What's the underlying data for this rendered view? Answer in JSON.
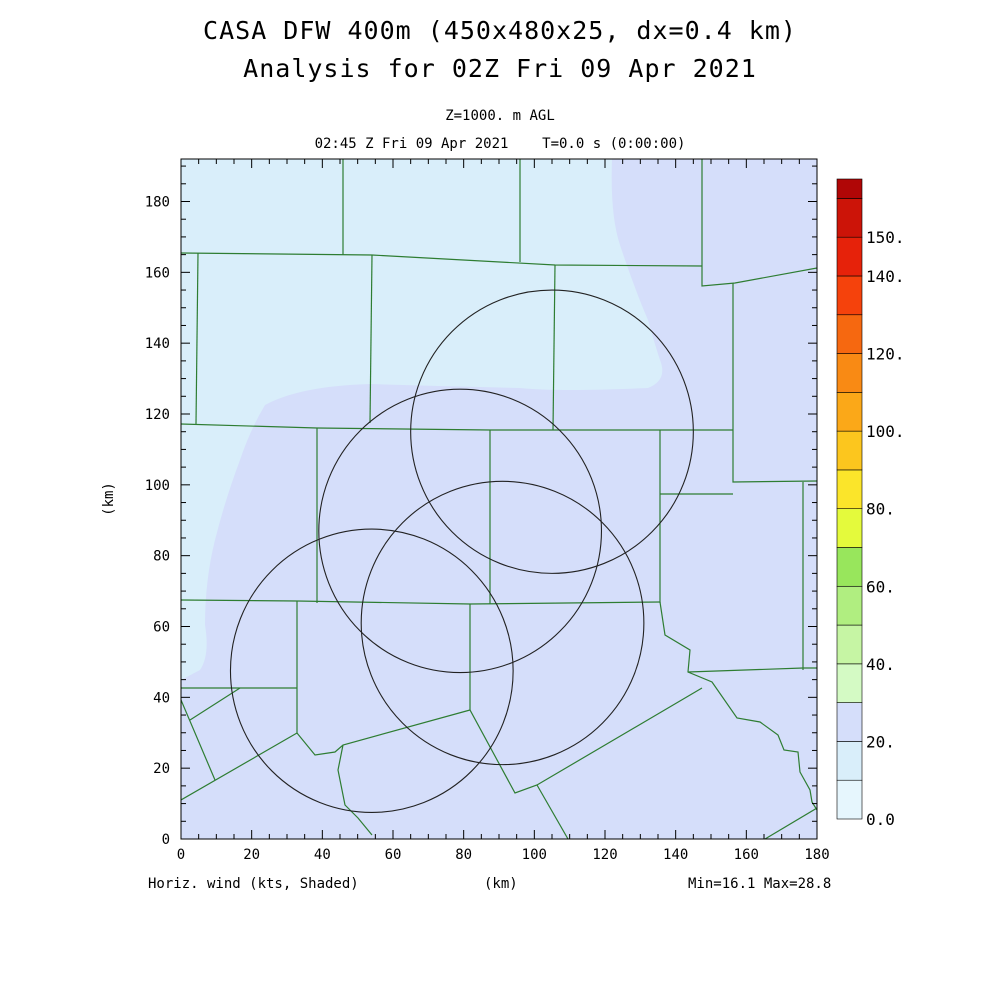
{
  "header": {
    "title_line1": "CASA DFW 400m (450x480x25, dx=0.4 km)",
    "title_line2": "Analysis for 02Z Fri 09 Apr 2021",
    "level": "Z=1000. m AGL",
    "time": "02:45 Z Fri 09 Apr 2021    T=0.0 s (0:00:00)"
  },
  "footer": {
    "variable": "Horiz. wind (kts, Shaded)",
    "x_unit": "(km)",
    "minmax": "Min=16.1 Max=28.8"
  },
  "colors": {
    "field_low": "#d9eefa",
    "field_mid": "#d5defa",
    "boundary": "#2e7d32",
    "range_ring": "#222222"
  },
  "chart_data": {
    "type": "heatmap",
    "xlabel": "(km)",
    "ylabel": "(km)",
    "xlim": [
      0,
      180
    ],
    "ylim": [
      0,
      192
    ],
    "x_ticks": [
      0,
      20,
      40,
      60,
      80,
      100,
      120,
      140,
      160,
      180
    ],
    "y_ticks": [
      0,
      20,
      40,
      60,
      80,
      100,
      120,
      140,
      160,
      180
    ],
    "field_min": 16.1,
    "field_max": 28.8,
    "grid": false,
    "range_rings": [
      {
        "center_x": 54,
        "center_y": 47.5,
        "radius_km": 40
      },
      {
        "center_x": 79,
        "center_y": 87,
        "radius_km": 40
      },
      {
        "center_x": 91,
        "center_y": 61,
        "radius_km": 40
      },
      {
        "center_x": 105,
        "center_y": 115,
        "radius_km": 40
      }
    ],
    "colorbar": {
      "labels": [
        "0.0",
        "20.",
        "40.",
        "60.",
        "80.",
        "100.",
        "120.",
        "140.",
        "150."
      ],
      "levels": [
        0,
        10,
        20,
        30,
        40,
        50,
        60,
        70,
        80,
        90,
        100,
        110,
        120,
        130,
        140,
        150
      ],
      "colors": [
        "#e6f6fd",
        "#d9eefa",
        "#d5defa",
        "#d4fac4",
        "#c6f5a4",
        "#b0ee80",
        "#98e65c",
        "#e4fa3c",
        "#fbe52a",
        "#fcc61e",
        "#fba818",
        "#f98a14",
        "#f66810",
        "#f5420c",
        "#e6220a",
        "#cc1408",
        "#b00606"
      ]
    }
  }
}
